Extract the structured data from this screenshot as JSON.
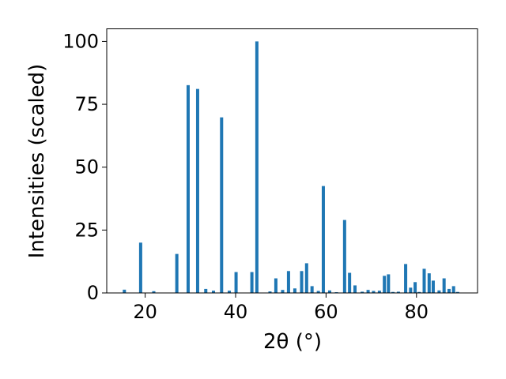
{
  "chart_data": {
    "type": "bar",
    "xlabel": "2θ (°)",
    "ylabel": "Intensities (scaled)",
    "xlim": [
      11.5,
      93.5
    ],
    "ylim": [
      0,
      105
    ],
    "xticks": [
      20,
      40,
      60,
      80
    ],
    "yticks": [
      0,
      25,
      50,
      75,
      100
    ],
    "bar_width_deg": 0.7,
    "bar_color": "#1f77b4",
    "grid": false,
    "legend": "none",
    "x": [
      15.4,
      19.0,
      21.9,
      27.0,
      29.5,
      31.6,
      33.4,
      35.1,
      36.9,
      38.6,
      40.1,
      43.6,
      44.7,
      47.6,
      48.9,
      50.4,
      51.7,
      53.1,
      54.6,
      55.7,
      56.9,
      58.3,
      59.4,
      60.8,
      62.3,
      64.1,
      65.2,
      66.4,
      68.0,
      69.3,
      70.5,
      71.8,
      72.9,
      73.8,
      74.8,
      76.0,
      77.6,
      78.7,
      79.7,
      80.6,
      81.7,
      82.8,
      83.7,
      85.0,
      86.1,
      87.2,
      88.2,
      89.1
    ],
    "values": [
      1.3,
      20.0,
      0.7,
      15.5,
      82.6,
      81.1,
      1.6,
      0.9,
      69.8,
      0.9,
      8.3,
      8.3,
      100.0,
      0.6,
      5.8,
      1.2,
      8.7,
      1.8,
      8.7,
      11.8,
      2.7,
      0.8,
      42.5,
      1.0,
      0.3,
      29.0,
      8.0,
      3.0,
      0.5,
      1.2,
      0.8,
      0.9,
      6.8,
      7.4,
      0.4,
      0.5,
      11.5,
      2.1,
      4.3,
      0.4,
      9.6,
      7.8,
      4.9,
      1.0,
      5.8,
      1.6,
      2.7,
      0.4
    ]
  }
}
